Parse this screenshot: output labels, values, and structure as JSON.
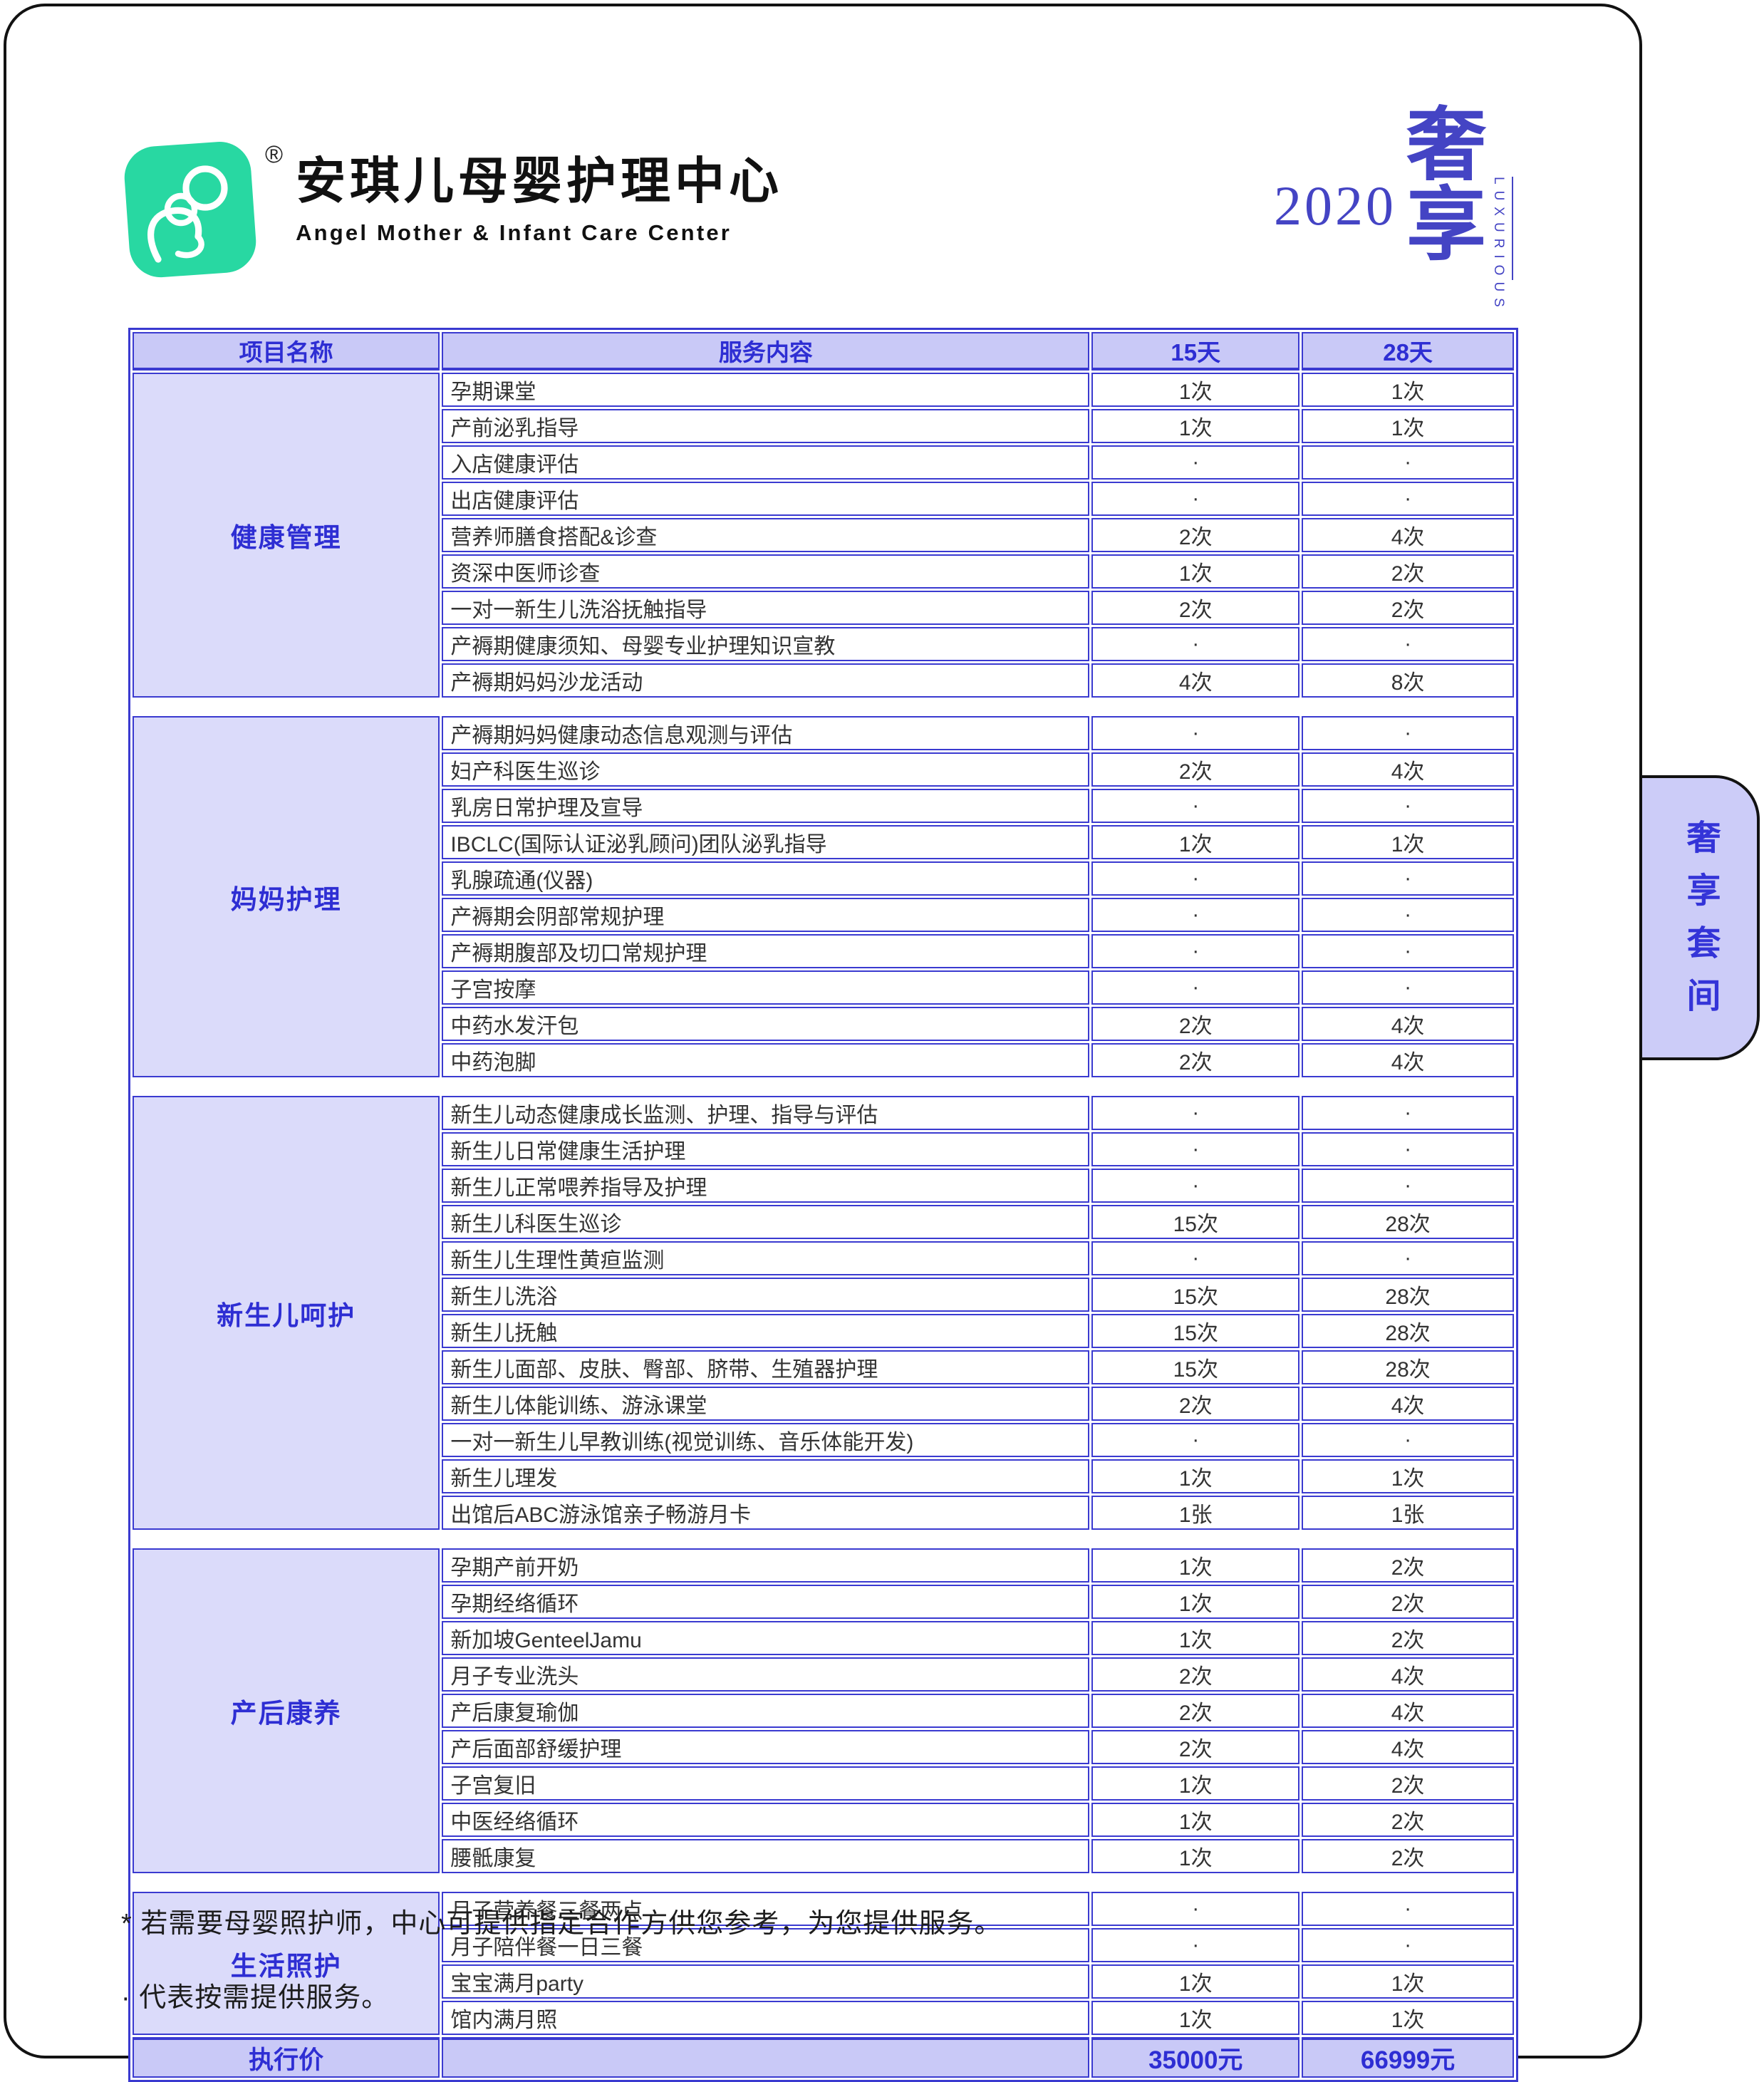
{
  "brand": {
    "registered_mark": "®",
    "name_cn": "安琪儿母婴护理中心",
    "name_en": "Angel Mother & Infant Care Center",
    "year": "2020",
    "badge_cn": "奢享",
    "badge_en": "LUXURIOUS"
  },
  "side_tab": {
    "label": "奢享套间"
  },
  "table": {
    "headers": [
      "项目名称",
      "服务内容",
      "15天",
      "28天"
    ],
    "sections": [
      {
        "name": "健康管理",
        "rows": [
          {
            "service": "孕期课堂",
            "d15": "1次",
            "d28": "1次"
          },
          {
            "service": "产前泌乳指导",
            "d15": "1次",
            "d28": "1次"
          },
          {
            "service": "入店健康评估",
            "d15": "·",
            "d28": "·"
          },
          {
            "service": "出店健康评估",
            "d15": "·",
            "d28": "·"
          },
          {
            "service": "营养师膳食搭配&诊查",
            "d15": "2次",
            "d28": "4次"
          },
          {
            "service": "资深中医师诊查",
            "d15": "1次",
            "d28": "2次"
          },
          {
            "service": "一对一新生儿洗浴抚触指导",
            "d15": "2次",
            "d28": "2次"
          },
          {
            "service": "产褥期健康须知、母婴专业护理知识宣教",
            "d15": "·",
            "d28": "·"
          },
          {
            "service": "产褥期妈妈沙龙活动",
            "d15": "4次",
            "d28": "8次"
          }
        ]
      },
      {
        "name": "妈妈护理",
        "rows": [
          {
            "service": "产褥期妈妈健康动态信息观测与评估",
            "d15": "·",
            "d28": "·"
          },
          {
            "service": "妇产科医生巡诊",
            "d15": "2次",
            "d28": "4次"
          },
          {
            "service": "乳房日常护理及宣导",
            "d15": "·",
            "d28": "·"
          },
          {
            "service": "IBCLC(国际认证泌乳顾问)团队泌乳指导",
            "d15": "1次",
            "d28": "1次"
          },
          {
            "service": "乳腺疏通(仪器)",
            "d15": "·",
            "d28": "·"
          },
          {
            "service": "产褥期会阴部常规护理",
            "d15": "·",
            "d28": "·"
          },
          {
            "service": "产褥期腹部及切口常规护理",
            "d15": "·",
            "d28": "·"
          },
          {
            "service": "子宫按摩",
            "d15": "·",
            "d28": "·"
          },
          {
            "service": "中药水发汗包",
            "d15": "2次",
            "d28": "4次"
          },
          {
            "service": "中药泡脚",
            "d15": "2次",
            "d28": "4次"
          }
        ]
      },
      {
        "name": "新生儿呵护",
        "rows": [
          {
            "service": "新生儿动态健康成长监测、护理、指导与评估",
            "d15": "·",
            "d28": "·"
          },
          {
            "service": "新生儿日常健康生活护理",
            "d15": "·",
            "d28": "·"
          },
          {
            "service": "新生儿正常喂养指导及护理",
            "d15": "·",
            "d28": "·"
          },
          {
            "service": "新生儿科医生巡诊",
            "d15": "15次",
            "d28": "28次"
          },
          {
            "service": "新生儿生理性黄疸监测",
            "d15": "·",
            "d28": "·"
          },
          {
            "service": "新生儿洗浴",
            "d15": "15次",
            "d28": "28次"
          },
          {
            "service": "新生儿抚触",
            "d15": "15次",
            "d28": "28次"
          },
          {
            "service": "新生儿面部、皮肤、臀部、脐带、生殖器护理",
            "d15": "15次",
            "d28": "28次"
          },
          {
            "service": "新生儿体能训练、游泳课堂",
            "d15": "2次",
            "d28": "4次"
          },
          {
            "service": "一对一新生儿早教训练(视觉训练、音乐体能开发)",
            "d15": "·",
            "d28": "·"
          },
          {
            "service": "新生儿理发",
            "d15": "1次",
            "d28": "1次"
          },
          {
            "service": "出馆后ABC游泳馆亲子畅游月卡",
            "d15": "1张",
            "d28": "1张"
          }
        ]
      },
      {
        "name": "产后康养",
        "rows": [
          {
            "service": "孕期产前开奶",
            "d15": "1次",
            "d28": "2次"
          },
          {
            "service": "孕期经络循环",
            "d15": "1次",
            "d28": "2次"
          },
          {
            "service": "新加坡GenteelJamu",
            "d15": "1次",
            "d28": "2次"
          },
          {
            "service": "月子专业洗头",
            "d15": "2次",
            "d28": "4次"
          },
          {
            "service": "产后康复瑜伽",
            "d15": "2次",
            "d28": "4次"
          },
          {
            "service": "产后面部舒缓护理",
            "d15": "2次",
            "d28": "4次"
          },
          {
            "service": "子宫复旧",
            "d15": "1次",
            "d28": "2次"
          },
          {
            "service": "中医经络循环",
            "d15": "1次",
            "d28": "2次"
          },
          {
            "service": "腰骶康复",
            "d15": "1次",
            "d28": "2次"
          }
        ]
      },
      {
        "name": "生活照护",
        "rows": [
          {
            "service": "月子营养餐三餐两点",
            "d15": "·",
            "d28": "·"
          },
          {
            "service": "月子陪伴餐一日三餐",
            "d15": "·",
            "d28": "·"
          },
          {
            "service": "宝宝满月party",
            "d15": "1次",
            "d28": "1次"
          },
          {
            "service": "馆内满月照",
            "d15": "1次",
            "d28": "1次"
          }
        ]
      }
    ],
    "price_row": {
      "label": "执行价",
      "d15": "35000元",
      "d28": "66999元"
    }
  },
  "notes": [
    "* 若需要母婴照护师，中心可提供指定合作方供您参考，为您提供服务。",
    "· 代表按需提供服务。"
  ],
  "colors": {
    "table_line": "#3a3ad0",
    "accent_blue": "#2e2ed3",
    "header_bg": "#c9c9f7",
    "category_bg": "#dbdbfa",
    "tab_bg": "#ccccf8",
    "logo_green": "#28d8a2",
    "badge_blue": "#4444c4"
  }
}
